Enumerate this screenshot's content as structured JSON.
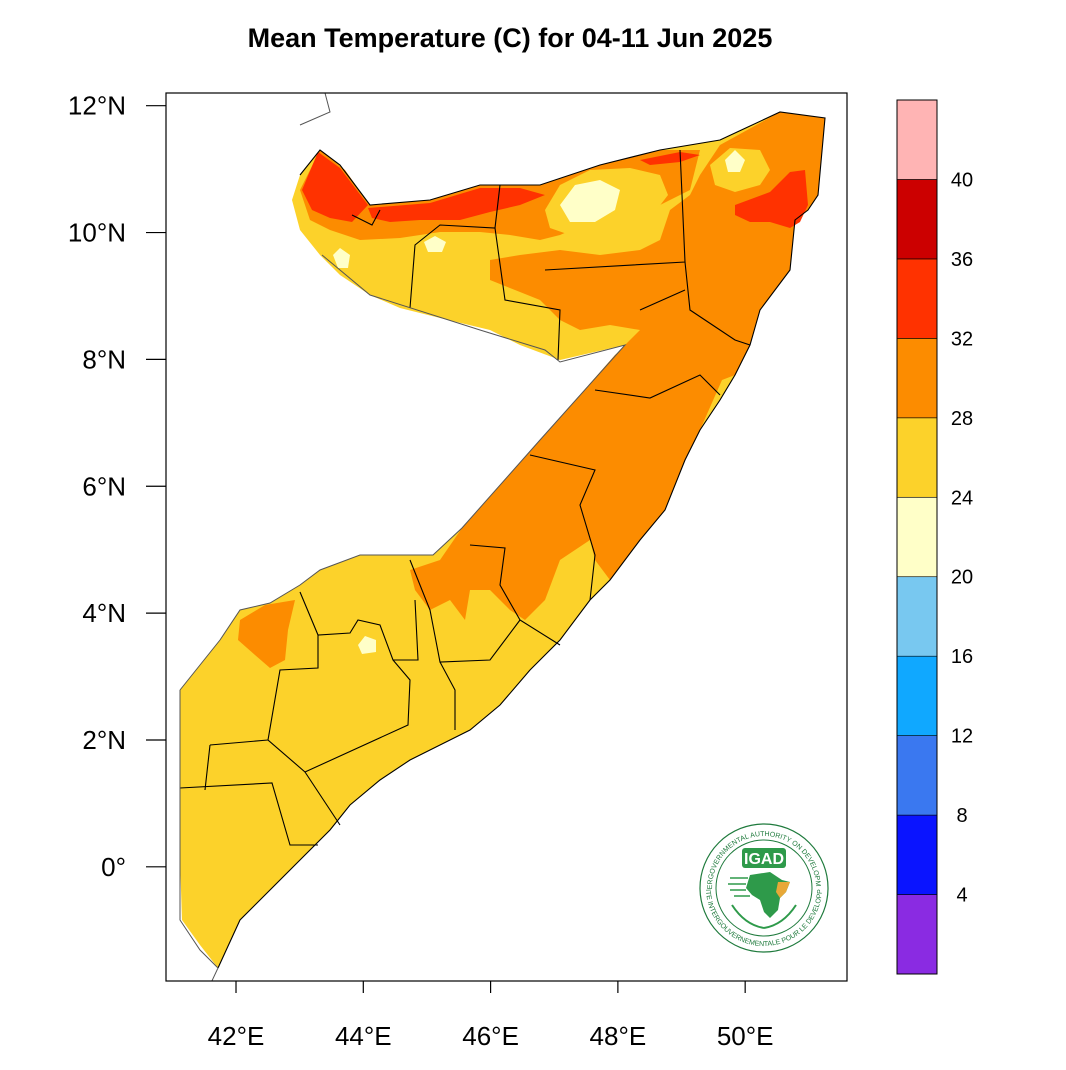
{
  "title": "Mean Temperature (C) for 04-11 Jun 2025",
  "map": {
    "lon_range": [
      40.9,
      51.6
    ],
    "lat_range": [
      -1.8,
      12.2
    ],
    "lon_ticks": [
      {
        "value": 42,
        "label": "42°E"
      },
      {
        "value": 44,
        "label": "44°E"
      },
      {
        "value": 46,
        "label": "46°E"
      },
      {
        "value": 48,
        "label": "48°E"
      },
      {
        "value": 50,
        "label": "50°E"
      }
    ],
    "lat_ticks": [
      {
        "value": 12,
        "label": "12°N"
      },
      {
        "value": 10,
        "label": "10°N"
      },
      {
        "value": 8,
        "label": "8°N"
      },
      {
        "value": 6,
        "label": "6°N"
      },
      {
        "value": 4,
        "label": "4°N"
      },
      {
        "value": 2,
        "label": "2°N"
      },
      {
        "value": 0,
        "label": "0°"
      }
    ]
  },
  "colorbar": {
    "levels": [
      "4",
      "8",
      "12",
      "16",
      "20",
      "24",
      "28",
      "32",
      "36",
      "40"
    ],
    "colors": [
      "#8a2be2",
      "#0a14ff",
      "#3a78f0",
      "#10a8ff",
      "#78c8f0",
      "#ffffc8",
      "#fcd22a",
      "#fc8c00",
      "#ff3200",
      "#cc0000",
      "#ffb4b4"
    ]
  },
  "legend_classes": {
    "cool": "#ffffc8",
    "mild": "#fcd22a",
    "warm": "#fc8c00",
    "hot": "#ff3200"
  },
  "logo": {
    "acronym": "IGAD",
    "ring_top": "INTERGOVERNMENTAL AUTHORITY ON DEVELOPMENT",
    "ring_bottom": "AUTORITE INTERGOUVERNEMENTALE POUR LE DEVELOPPEMENT"
  }
}
